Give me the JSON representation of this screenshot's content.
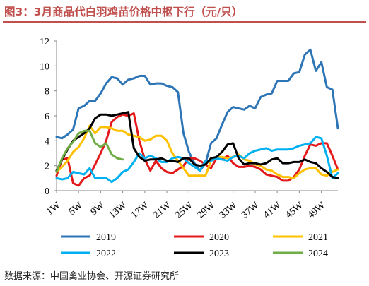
{
  "title": "图3：3月商品代白羽鸡苗价格中枢下行（元/只）",
  "source": "数据来源：中国禽业协会、开源证券研究所",
  "chart_data": {
    "type": "line",
    "title": "图3：3月商品代白羽鸡苗价格中枢下行（元/只）",
    "xlabel": "",
    "ylabel": "",
    "ylim": [
      0,
      12
    ],
    "yticks": [
      0,
      2,
      4,
      6,
      8,
      10,
      12
    ],
    "xlim": [
      1,
      52
    ],
    "x_tick_labels": [
      "1W",
      "5W",
      "9W",
      "13W",
      "17W",
      "21W",
      "25W",
      "29W",
      "33W",
      "37W",
      "41W",
      "45W",
      "49W"
    ],
    "x_tick_values": [
      1,
      5,
      9,
      13,
      17,
      21,
      25,
      29,
      33,
      37,
      41,
      45,
      49
    ],
    "grid": false,
    "legend_position": "bottom",
    "series": [
      {
        "name": "2019",
        "color": "#2e75b6",
        "values": [
          4.3,
          4.2,
          4.5,
          4.9,
          6.6,
          6.8,
          7.2,
          7.2,
          7.8,
          8.6,
          9.1,
          9.0,
          8.5,
          8.9,
          9.0,
          9.2,
          9.2,
          8.5,
          8.6,
          8.6,
          8.4,
          8.3,
          7.9,
          4.6,
          3.1,
          2.2,
          1.6,
          2.2,
          3.8,
          4.2,
          5.3,
          6.3,
          6.7,
          6.6,
          6.5,
          6.8,
          6.6,
          7.5,
          7.7,
          7.8,
          8.8,
          8.8,
          8.8,
          9.4,
          9.5,
          10.9,
          11.3,
          9.6,
          10.3,
          8.3,
          8.1,
          5.0
        ]
      },
      {
        "name": "2020",
        "color": "#e31a1c",
        "values": [
          1.2,
          2.5,
          2.6,
          0.6,
          0.4,
          1.0,
          1.2,
          2.1,
          3.0,
          4.0,
          5.5,
          5.9,
          6.1,
          6.0,
          6.2,
          4.0,
          2.5,
          1.6,
          2.4,
          1.8,
          1.5,
          1.4,
          1.7,
          2.0,
          2.6,
          2.6,
          2.4,
          2.1,
          1.8,
          2.6,
          2.5,
          2.8,
          2.2,
          1.9,
          1.9,
          2.0,
          1.9,
          1.7,
          1.3,
          1.2,
          1.1,
          0.8,
          0.8,
          1.1,
          1.7,
          2.8,
          3.7,
          3.6,
          3.8,
          3.8,
          2.8,
          1.7
        ]
      },
      {
        "name": "2021",
        "color": "#ffc000",
        "values": [
          1.5,
          1.9,
          2.4,
          3.1,
          3.5,
          4.2,
          5.2,
          4.6,
          5.1,
          5.1,
          5.0,
          4.8,
          4.8,
          4.5,
          4.4,
          4.3,
          4.0,
          4.1,
          4.4,
          4.4,
          4.0,
          3.0,
          2.4,
          1.8,
          1.2,
          1.2,
          1.2,
          1.2,
          2.4,
          2.7,
          2.7,
          2.6,
          2.7,
          2.9,
          2.5,
          2.4,
          2.1,
          2.0,
          1.7,
          1.6,
          1.3,
          1.1,
          1.1,
          1.0,
          1.4,
          1.7,
          1.8,
          1.8,
          1.3,
          1.2,
          1.5,
          1.7
        ]
      },
      {
        "name": "2022",
        "color": "#00b0f0",
        "values": [
          1.0,
          0.9,
          1.0,
          1.5,
          1.4,
          1.3,
          1.8,
          1.0,
          1.0,
          1.0,
          0.7,
          1.0,
          1.5,
          1.7,
          2.3,
          3.0,
          2.6,
          2.8,
          2.6,
          2.3,
          2.3,
          2.6,
          2.7,
          2.6,
          2.2,
          1.9,
          1.6,
          2.4,
          2.4,
          2.6,
          2.5,
          2.4,
          2.7,
          2.8,
          2.6,
          3.0,
          3.2,
          3.3,
          3.4,
          3.2,
          3.3,
          3.3,
          3.3,
          3.4,
          3.6,
          3.7,
          3.8,
          4.3,
          4.2,
          2.8,
          1.0,
          1.4
        ]
      },
      {
        "name": "2023",
        "color": "#000000",
        "values": [
          1.6,
          2.5,
          3.3,
          4.0,
          4.3,
          4.6,
          5.0,
          5.8,
          6.1,
          6.1,
          6.0,
          6.1,
          6.2,
          6.3,
          3.4,
          2.7,
          2.4,
          2.5,
          2.5,
          2.6,
          2.4,
          2.4,
          2.3,
          2.6,
          2.6,
          2.1,
          2.0,
          2.1,
          2.6,
          2.7,
          3.1,
          3.7,
          3.8,
          2.6,
          2.1,
          2.2,
          2.2,
          2.1,
          2.2,
          2.5,
          2.6,
          2.2,
          2.2,
          2.3,
          2.3,
          2.5,
          2.3,
          2.2,
          1.8,
          1.5,
          1.1,
          1.0
        ]
      },
      {
        "name": "2024",
        "color": "#70ad47",
        "values": [
          1.5,
          2.6,
          3.4,
          3.9,
          4.6,
          4.8,
          4.8,
          3.8,
          3.5,
          3.8,
          2.9,
          2.6,
          2.5
        ]
      }
    ]
  }
}
